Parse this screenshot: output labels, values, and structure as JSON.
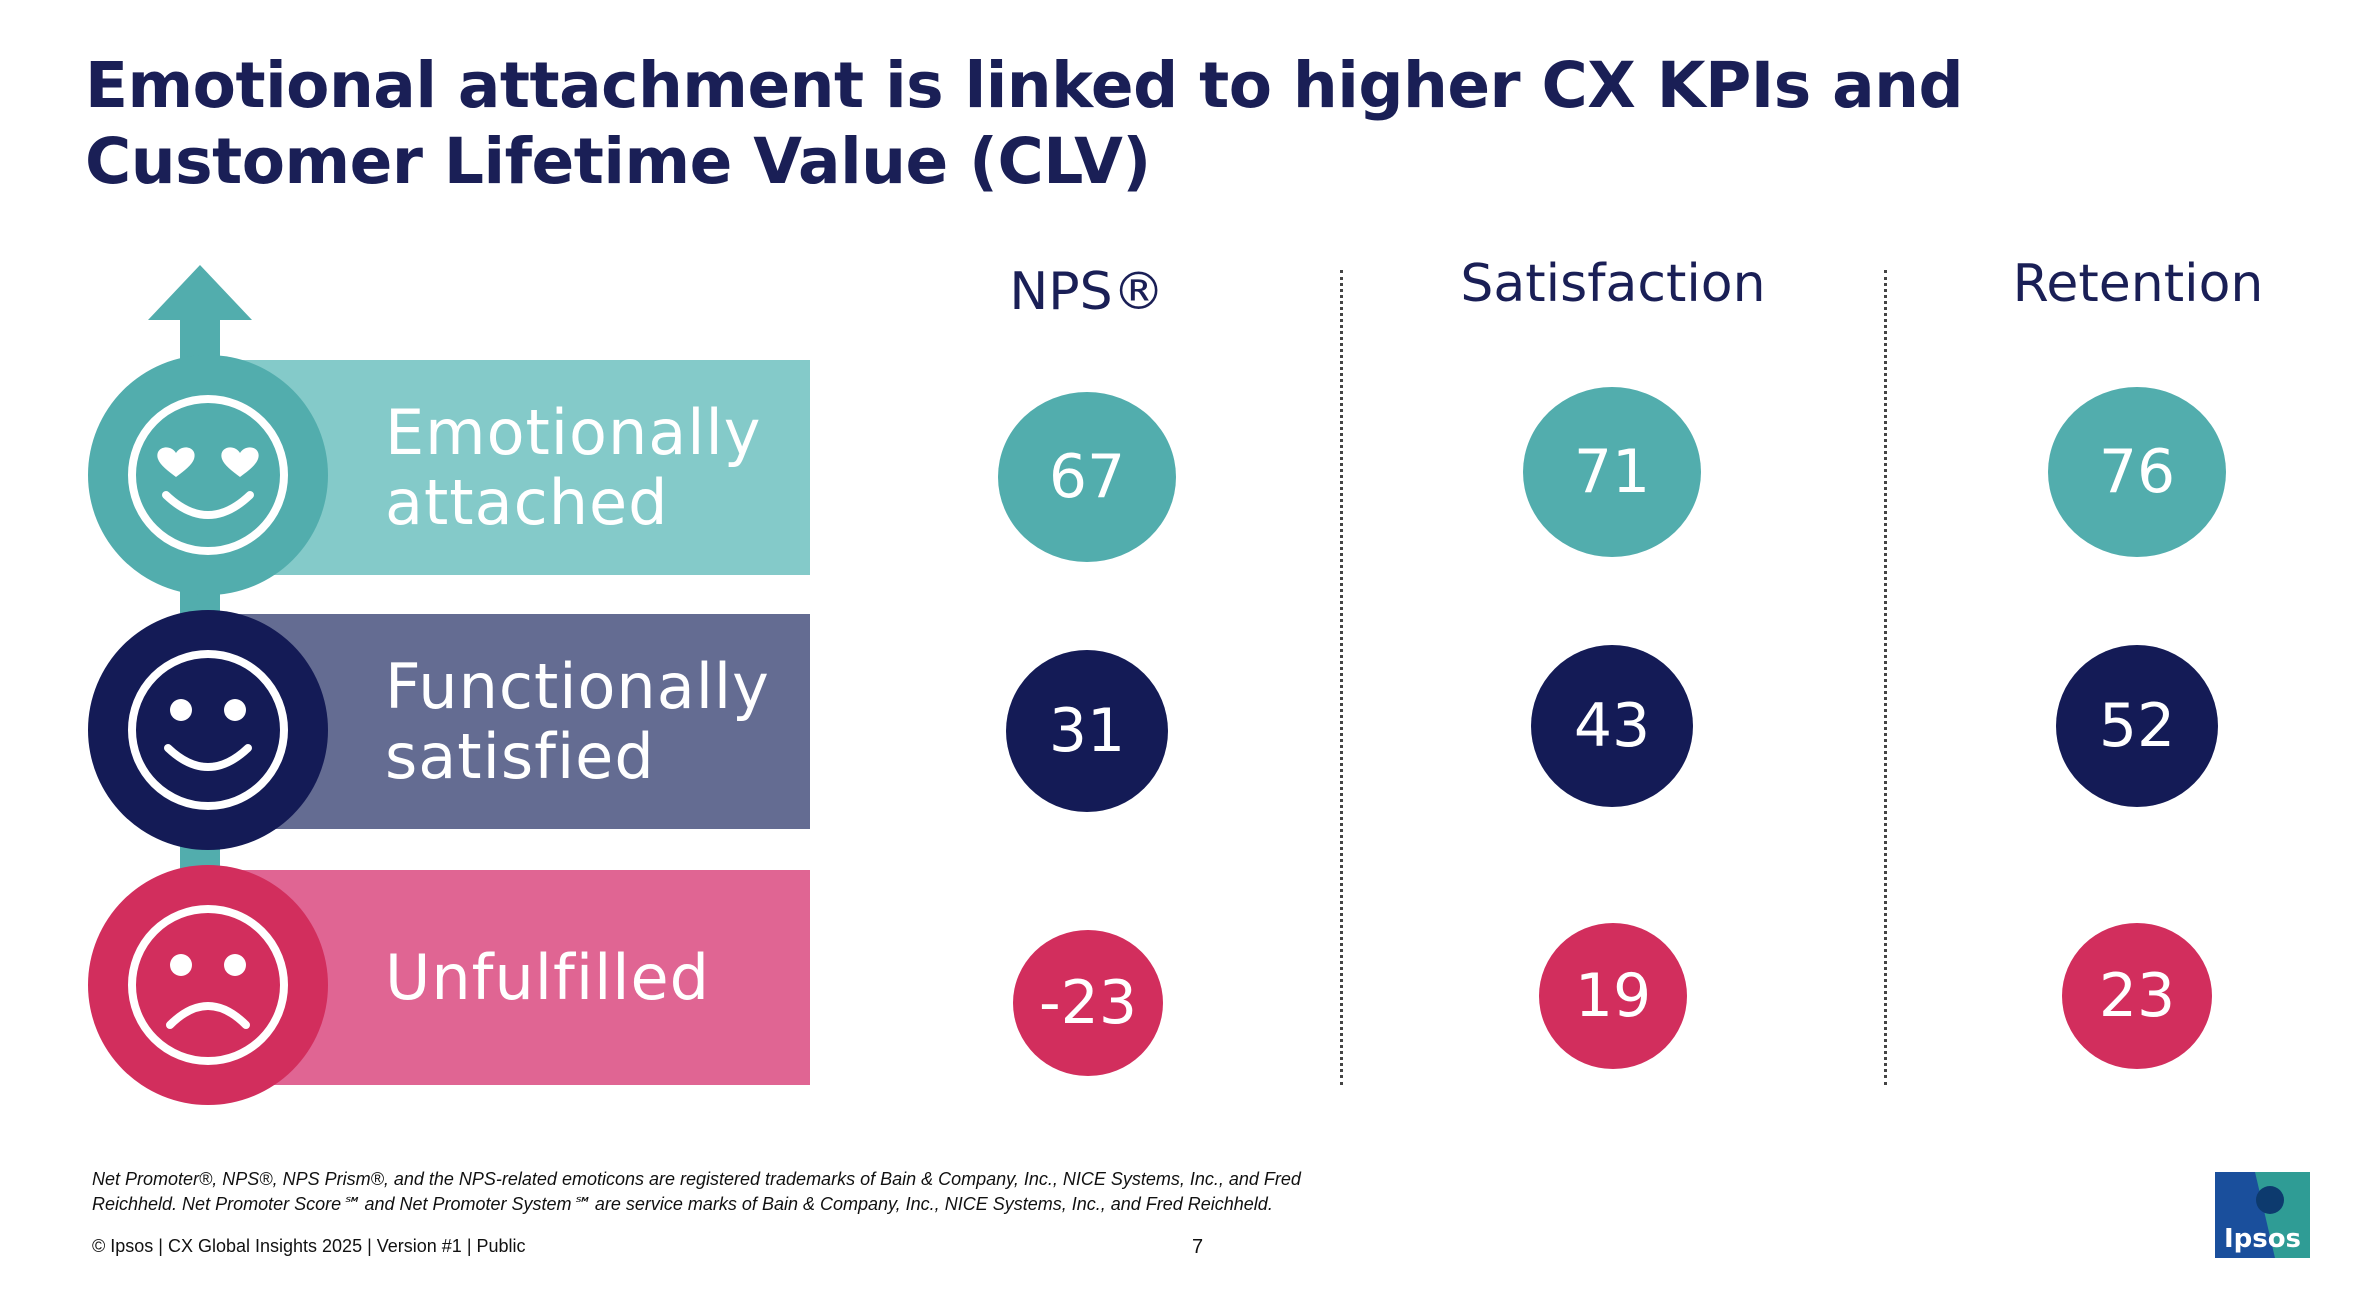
{
  "slide": {
    "title": "Emotional attachment is linked to higher CX KPIs and Customer Lifetime Value (CLV)"
  },
  "segments": [
    {
      "label_line1": "Emotionally",
      "label_line2": "attached",
      "face": "heart-eyes-smile-icon",
      "band_color": "#84cac9",
      "circle_color": "#52adad"
    },
    {
      "label_line1": "Functionally",
      "label_line2": "satisfied",
      "face": "smile-icon",
      "band_color": "#646c92",
      "circle_color": "#141b56"
    },
    {
      "label_line1": "Unfulfilled",
      "label_line2": "",
      "face": "frown-icon",
      "band_color": "#e06593",
      "circle_color": "#d22e5d"
    }
  ],
  "columns": [
    "NPS®",
    "Satisfaction",
    "Retention"
  ],
  "values": {
    "emotionally_attached": [
      "67",
      "71",
      "76"
    ],
    "functionally_satisfied": [
      "31",
      "43",
      "52"
    ],
    "unfulfilled": [
      "-23",
      "19",
      "23"
    ]
  },
  "colors": {
    "title": "#1a1f56",
    "arrow": "#52adad",
    "connector": "#52adad"
  },
  "footnote": {
    "line1": "Net Promoter®, NPS®, NPS Prism®, and the NPS-related emoticons are registered trademarks of Bain & Company, Inc., NICE Systems, Inc., and Fred",
    "line2": "Reichheld. Net Promoter Score℠ and Net Promoter System℠ are service marks of Bain & Company, Inc., NICE Systems, Inc., and Fred Reichheld."
  },
  "footer": {
    "text": "© Ipsos | CX Global Insights 2025 | Version #1 | Public",
    "page_number": "7",
    "logo_text": "Ipsos"
  }
}
